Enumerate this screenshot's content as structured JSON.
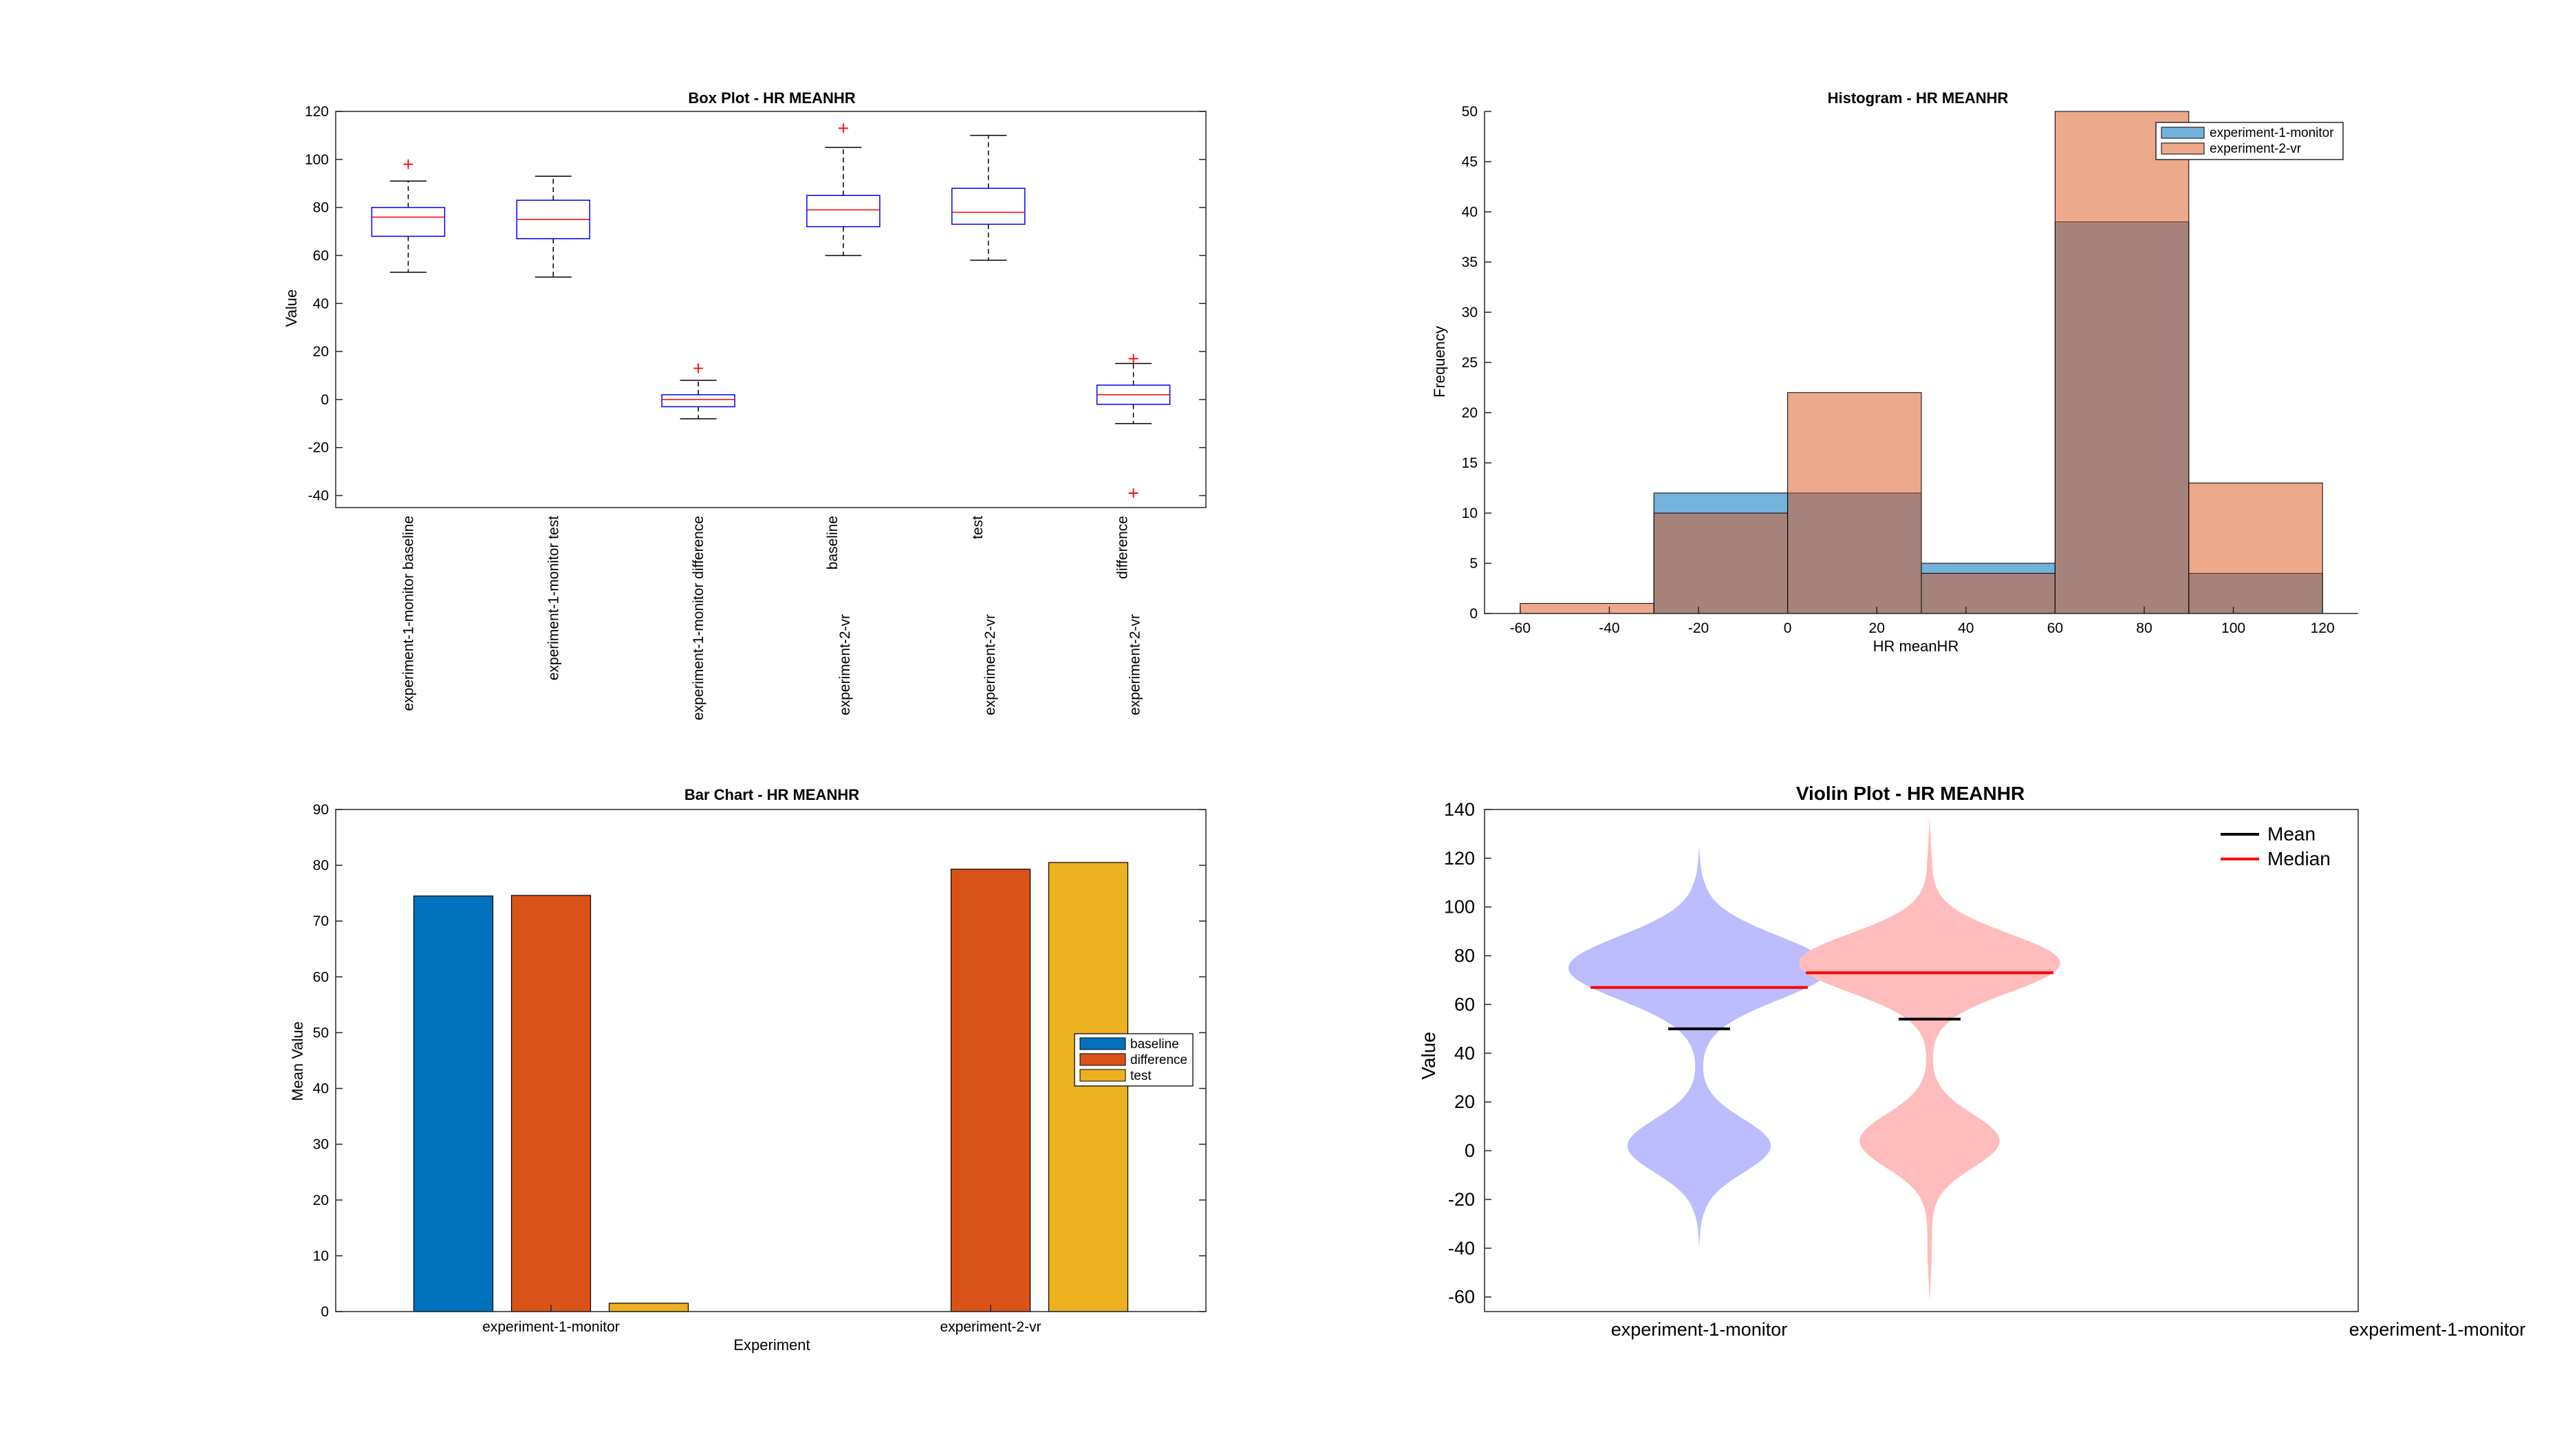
{
  "chart_data": [
    {
      "type": "box",
      "title": "Box Plot - HR MEANHR",
      "ylabel": "Value",
      "ylim": [
        -45,
        120
      ],
      "yticks": [
        120,
        100,
        80,
        60,
        40,
        20,
        0,
        -20,
        -40
      ],
      "categories": [
        {
          "line1": "experiment-1-monitor baseline",
          "line2": ""
        },
        {
          "line1": "experiment-1-monitor test",
          "line2": ""
        },
        {
          "line1": "experiment-1-monitor difference",
          "line2": ""
        },
        {
          "line1": "baseline",
          "line2": "experiment-2-vr"
        },
        {
          "line1": "test",
          "line2": "experiment-2-vr"
        },
        {
          "line1": "difference",
          "line2": "experiment-2-vr"
        }
      ],
      "boxes": [
        {
          "whisker_low": 53,
          "q1": 68,
          "median": 76,
          "q3": 80,
          "whisker_high": 91,
          "outliers": [
            98
          ]
        },
        {
          "whisker_low": 51,
          "q1": 67,
          "median": 75,
          "q3": 83,
          "whisker_high": 93,
          "outliers": []
        },
        {
          "whisker_low": -8,
          "q1": -3,
          "median": 0,
          "q3": 2,
          "whisker_high": 8,
          "outliers": [
            13
          ]
        },
        {
          "whisker_low": 60,
          "q1": 72,
          "median": 79,
          "q3": 85,
          "whisker_high": 105,
          "outliers": [
            113
          ]
        },
        {
          "whisker_low": 58,
          "q1": 73,
          "median": 78,
          "q3": 88,
          "whisker_high": 110,
          "outliers": []
        },
        {
          "whisker_low": -10,
          "q1": -2,
          "median": 2,
          "q3": 6,
          "whisker_high": 15,
          "outliers": [
            17,
            -39
          ]
        }
      ],
      "colors": {
        "box": "#0000ff",
        "median": "#ff0000",
        "outlier": "#ff0000",
        "whisker": "#000000"
      }
    },
    {
      "type": "histogram",
      "title": "Histogram - HR MEANHR",
      "xlabel": "HR meanHR",
      "ylabel": "Frequency",
      "xlim": [
        -68,
        128
      ],
      "ylim": [
        0,
        50
      ],
      "xticks": [
        -60,
        -40,
        -20,
        0,
        20,
        40,
        60,
        80,
        100,
        120
      ],
      "yticks": [
        0,
        5,
        10,
        15,
        20,
        25,
        30,
        35,
        40,
        45,
        50
      ],
      "bin_edges": [
        -60,
        -30,
        0,
        30,
        60,
        90,
        120
      ],
      "series": [
        {
          "name": "experiment-1-monitor",
          "counts": [
            0,
            12,
            12,
            5,
            39,
            4
          ],
          "color": "#0072bd"
        },
        {
          "name": "experiment-2-vr",
          "counts": [
            1,
            10,
            22,
            4,
            50,
            13
          ],
          "color": "#d95319"
        }
      ],
      "legend_position": "top-right"
    },
    {
      "type": "bar",
      "title": "Bar Chart - HR MEANHR",
      "xlabel": "Experiment",
      "ylabel": "Mean Value",
      "ylim": [
        0,
        90
      ],
      "yticks": [
        0,
        10,
        20,
        30,
        40,
        50,
        60,
        70,
        80,
        90
      ],
      "categories": [
        "experiment-1-monitor",
        "experiment-2-vr"
      ],
      "series": [
        {
          "name": "baseline",
          "values": [
            74.5,
            0
          ],
          "color": "#0072bd"
        },
        {
          "name": "difference",
          "values": [
            74.6,
            79.3
          ],
          "color": "#d95319"
        },
        {
          "name": "test",
          "values": [
            1.5,
            80.5
          ],
          "color": "#edb120"
        }
      ],
      "legend_position": "right"
    },
    {
      "type": "violin",
      "title": "Violin Plot - HR MEANHR",
      "ylabel": "Value",
      "ylim": [
        -66,
        140
      ],
      "yticks": [
        140,
        120,
        100,
        80,
        60,
        40,
        20,
        0,
        -20,
        -40,
        -60
      ],
      "categories": [
        "experiment-1-monitor",
        "experiment-1-monitor"
      ],
      "violins": [
        {
          "mean": 50,
          "median": 67,
          "range": [
            -40,
            125
          ],
          "modes": [
            {
              "center": 75,
              "spread": 13,
              "weight": 0.74
            },
            {
              "center": 2,
              "spread": 11,
              "weight": 0.4
            }
          ],
          "color": "#bcbcff"
        },
        {
          "mean": 54,
          "median": 73,
          "range": [
            -62,
            137
          ],
          "modes": [
            {
              "center": 77,
              "spread": 12,
              "weight": 0.72
            },
            {
              "center": 4,
              "spread": 11,
              "weight": 0.38
            }
          ],
          "color": "#ffbcbc"
        }
      ],
      "legend": [
        {
          "label": "Mean",
          "color": "#000000"
        },
        {
          "label": "Median",
          "color": "#ff0000"
        }
      ],
      "legend_position": "top-right"
    }
  ]
}
